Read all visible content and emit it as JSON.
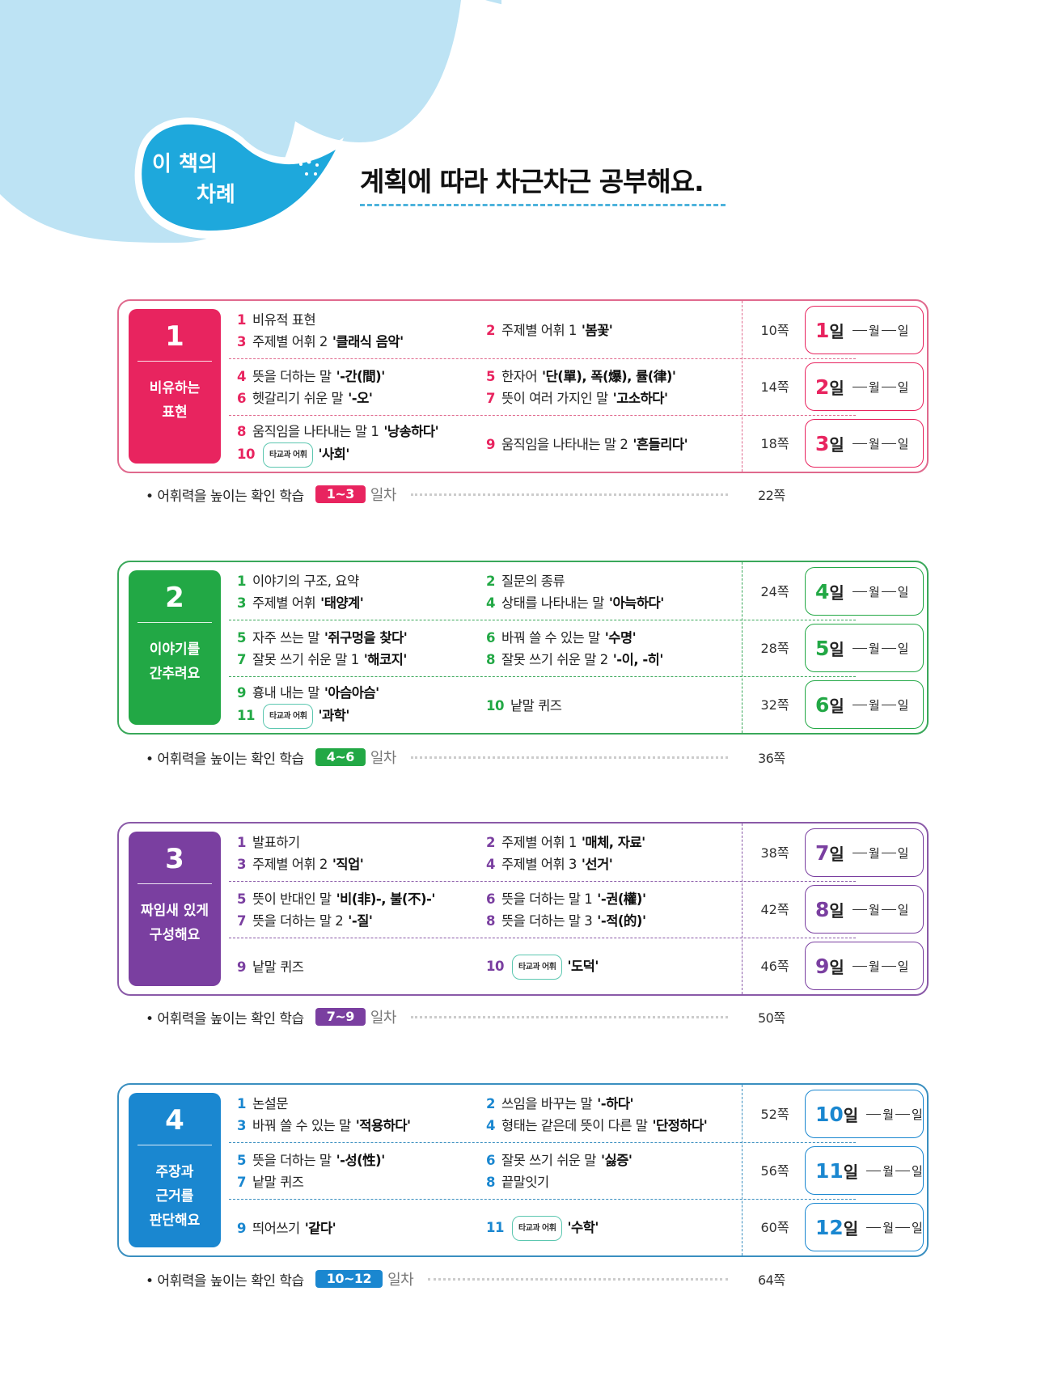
{
  "header": {
    "bubble_line1": "이 책의",
    "bubble_line2": "차례",
    "title": "계획에 따라 차근차근 공부해요."
  },
  "labels": {
    "tag": "타교과 어휘",
    "summary": "• 어휘력을 높이는 확인 학습",
    "unit": "일차",
    "day_suffix": "일",
    "month": "월",
    "date": "일"
  },
  "sections": [
    {
      "num": "1",
      "name": "비유하는\n표현",
      "color": "#e8245f",
      "border": "#e06a8e",
      "rows": [
        {
          "left": [
            {
              "n": "1",
              "t": "비유적 표현"
            },
            {
              "n": "3",
              "t": "주제별 어휘 2",
              "b": "'클래식 음악'"
            }
          ],
          "right": [
            {
              "n": "2",
              "t": "주제별 어휘 1",
              "b": "'봄꽃'"
            }
          ],
          "page": "10쪽",
          "day": "1"
        },
        {
          "left": [
            {
              "n": "4",
              "t": "뜻을 더하는 말",
              "b": "'-간(間)'"
            },
            {
              "n": "6",
              "t": "헷갈리기 쉬운 말",
              "b": "'-오'"
            }
          ],
          "right": [
            {
              "n": "5",
              "t": "한자어",
              "b": "'단(單), 폭(爆), 률(律)'"
            },
            {
              "n": "7",
              "t": "뜻이 여러 가지인 말",
              "b": "'고소하다'"
            }
          ],
          "page": "14쪽",
          "day": "2"
        },
        {
          "left": [
            {
              "n": "8",
              "t": "움직임을 나타내는 말 1",
              "b": "'낭송하다'"
            },
            {
              "n": "10",
              "tag": true,
              "b": "'사회'"
            }
          ],
          "right": [
            {
              "n": "9",
              "t": "움직임을 나타내는 말 2",
              "b": "'흔들리다'"
            }
          ],
          "page": "18쪽",
          "day": "3"
        }
      ],
      "summary": {
        "range": "1~3",
        "page": "22쪽"
      }
    },
    {
      "num": "2",
      "name": "이야기를\n간추려요",
      "color": "#22a845",
      "border": "#3aa85a",
      "rows": [
        {
          "left": [
            {
              "n": "1",
              "t": "이야기의 구조, 요약"
            },
            {
              "n": "3",
              "t": "주제별 어휘",
              "b": "'태양계'"
            }
          ],
          "right": [
            {
              "n": "2",
              "t": "질문의 종류"
            },
            {
              "n": "4",
              "t": "상태를 나타내는 말",
              "b": "'아늑하다'"
            }
          ],
          "page": "24쪽",
          "day": "4"
        },
        {
          "left": [
            {
              "n": "5",
              "t": "자주 쓰는 말",
              "b": "'쥐구멍을 찾다'"
            },
            {
              "n": "7",
              "t": "잘못 쓰기 쉬운 말 1",
              "b": "'해코지'"
            }
          ],
          "right": [
            {
              "n": "6",
              "t": "바꿔 쓸 수 있는 말",
              "b": "'수명'"
            },
            {
              "n": "8",
              "t": "잘못 쓰기 쉬운 말 2",
              "b": "'-이, -히'"
            }
          ],
          "page": "28쪽",
          "day": "5"
        },
        {
          "left": [
            {
              "n": "9",
              "t": "흉내 내는 말",
              "b": "'아슴아슴'"
            },
            {
              "n": "11",
              "tag": true,
              "b": "'과학'"
            }
          ],
          "right": [
            {
              "n": "10",
              "t": "낱말 퀴즈"
            }
          ],
          "page": "32쪽",
          "day": "6"
        }
      ],
      "summary": {
        "range": "4~6",
        "page": "36쪽"
      }
    },
    {
      "num": "3",
      "name": "짜임새 있게\n구성해요",
      "color": "#7a3fa0",
      "border": "#8a5aa8",
      "rows": [
        {
          "left": [
            {
              "n": "1",
              "t": "발표하기"
            },
            {
              "n": "3",
              "t": "주제별 어휘 2",
              "b": "'직업'"
            }
          ],
          "right": [
            {
              "n": "2",
              "t": "주제별 어휘 1",
              "b": "'매체, 자료'"
            },
            {
              "n": "4",
              "t": "주제별 어휘 3",
              "b": "'선거'"
            }
          ],
          "page": "38쪽",
          "day": "7"
        },
        {
          "left": [
            {
              "n": "5",
              "t": "뜻이 반대인 말",
              "b": "'비(非)-, 불(不)-'"
            },
            {
              "n": "7",
              "t": "뜻을 더하는 말 2",
              "b": "'-질'"
            }
          ],
          "right": [
            {
              "n": "6",
              "t": "뜻을 더하는 말 1",
              "b": "'-권(權)'"
            },
            {
              "n": "8",
              "t": "뜻을 더하는 말 3",
              "b": "'-적(的)'"
            }
          ],
          "page": "42쪽",
          "day": "8"
        },
        {
          "left": [
            {
              "n": "9",
              "t": "낱말 퀴즈"
            }
          ],
          "right": [
            {
              "n": "10",
              "tag": true,
              "b": "'도덕'"
            }
          ],
          "page": "46쪽",
          "day": "9"
        }
      ],
      "summary": {
        "range": "7~9",
        "page": "50쪽"
      }
    },
    {
      "num": "4",
      "name": "주장과\n근거를\n판단해요",
      "color": "#1a87d0",
      "border": "#3a8fc0",
      "rows": [
        {
          "left": [
            {
              "n": "1",
              "t": "논설문"
            },
            {
              "n": "3",
              "t": "바꿔 쓸 수 있는 말",
              "b": "'적용하다'"
            }
          ],
          "right": [
            {
              "n": "2",
              "t": "쓰임을 바꾸는 말",
              "b": "'-하다'"
            },
            {
              "n": "4",
              "t": "형태는 같은데 뜻이 다른 말",
              "b": "'단정하다'"
            }
          ],
          "page": "52쪽",
          "day": "10"
        },
        {
          "left": [
            {
              "n": "5",
              "t": "뜻을 더하는 말",
              "b": "'-성(性)'"
            },
            {
              "n": "7",
              "t": "낱말 퀴즈"
            }
          ],
          "right": [
            {
              "n": "6",
              "t": "잘못 쓰기 쉬운 말",
              "b": "'싫증'"
            },
            {
              "n": "8",
              "t": "끝말잇기"
            }
          ],
          "page": "56쪽",
          "day": "11"
        },
        {
          "left": [
            {
              "n": "9",
              "t": "띄어쓰기",
              "b": "'같다'"
            }
          ],
          "right": [
            {
              "n": "11",
              "tag": true,
              "b": "'수학'"
            }
          ],
          "page": "60쪽",
          "day": "12"
        }
      ],
      "summary": {
        "range": "10~12",
        "page": "64쪽"
      }
    }
  ],
  "colors": {
    "cloud": "#bde3f4",
    "bubble": "#1ea8dc"
  }
}
